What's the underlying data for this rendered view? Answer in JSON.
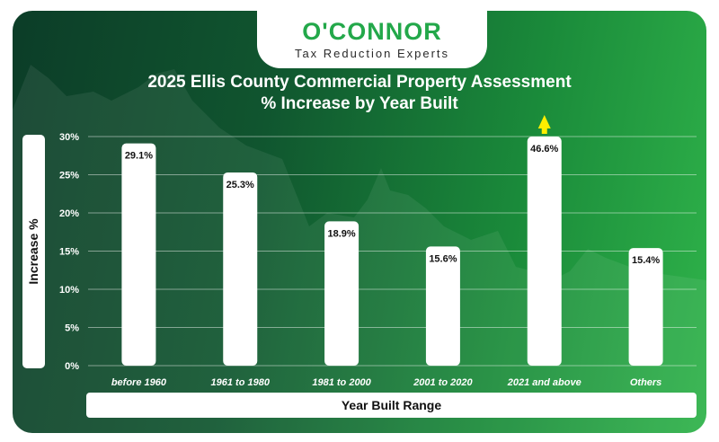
{
  "brand": {
    "name": "O'CONNOR",
    "tagline": "Tax Reduction Experts"
  },
  "colors": {
    "accent": "#23a84a",
    "bar": "#ffffff",
    "arrow": "#ffee00"
  },
  "chart_data": {
    "type": "bar",
    "title": "2025 Ellis County Commercial Property Assessment",
    "subtitle": "% Increase by Year Built",
    "xlabel": "Year Built Range",
    "ylabel": "Increase %",
    "categories": [
      "before 1960",
      "1961 to 1980",
      "1981 to 2000",
      "2001 to 2020",
      "2021 and above",
      "Others"
    ],
    "values": [
      29.1,
      25.3,
      18.9,
      15.6,
      46.6,
      15.4
    ],
    "value_labels": [
      "29.1%",
      "25.3%",
      "18.9%",
      "15.6%",
      "46.6%",
      "15.4%"
    ],
    "ylim": [
      0,
      30
    ],
    "yticks": [
      0,
      5,
      10,
      15,
      20,
      25,
      30
    ],
    "ytick_labels": [
      "0%",
      "5%",
      "10%",
      "15%",
      "20%",
      "25%",
      "30%"
    ],
    "grid": true,
    "legend": "none",
    "overflow_indicator": "arrow above 2021 and above bar"
  }
}
